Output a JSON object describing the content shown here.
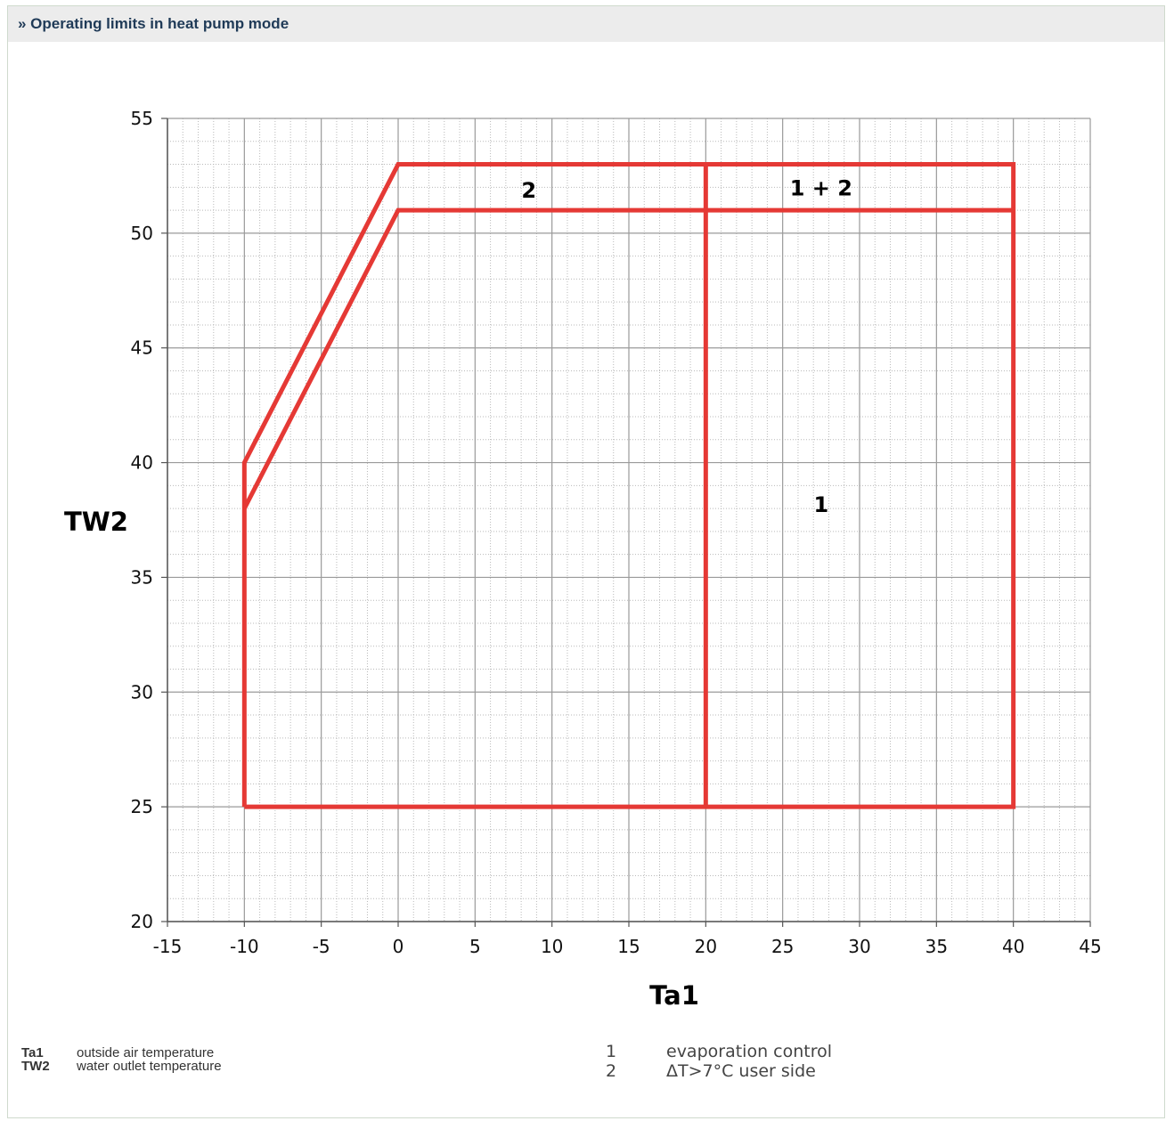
{
  "header": {
    "title": "» Operating limits in heat pump mode"
  },
  "chart_data": {
    "type": "line",
    "xlabel": "Ta1",
    "ylabel": "TW2",
    "xlim": [
      -15,
      45
    ],
    "ylim": [
      20,
      55
    ],
    "xticks": [
      -15,
      -10,
      -5,
      0,
      5,
      10,
      15,
      20,
      25,
      30,
      35,
      40,
      45
    ],
    "yticks": [
      20,
      25,
      30,
      35,
      40,
      45,
      50,
      55
    ],
    "grid": true,
    "line_color": "#e53935",
    "series": [
      {
        "points": [
          [
            -10,
            25
          ],
          [
            -10,
            40
          ],
          [
            0,
            53
          ],
          [
            40,
            53
          ],
          [
            40,
            25
          ],
          [
            -10,
            25
          ]
        ]
      },
      {
        "points": [
          [
            -10,
            38
          ],
          [
            0,
            51
          ],
          [
            40,
            51
          ]
        ]
      },
      {
        "points": [
          [
            20,
            25
          ],
          [
            20,
            53
          ]
        ]
      }
    ],
    "annotations": [
      {
        "text": "2",
        "x": 8.5,
        "y": 51.9
      },
      {
        "text": "1 + 2",
        "x": 27.5,
        "y": 52.0
      },
      {
        "text": "1",
        "x": 27.5,
        "y": 38.2
      }
    ]
  },
  "legend": {
    "abbreviations": [
      {
        "key": "Ta1",
        "desc": "outside air temperature"
      },
      {
        "key": "TW2",
        "desc": "water outlet temperature"
      }
    ],
    "notes": [
      {
        "num": "1",
        "desc": "evaporation control"
      },
      {
        "num": "2",
        "desc": "ΔT>7°C user side"
      }
    ]
  }
}
